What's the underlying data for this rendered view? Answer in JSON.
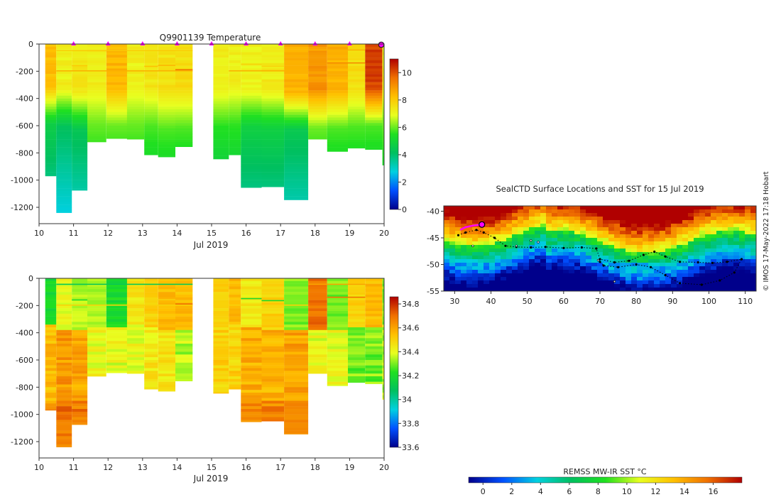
{
  "chart_data": [
    {
      "type": "heatmap",
      "variable": "temperature",
      "title": "Q9901139  Temperature",
      "xlabel": "Jul 2019",
      "ylabel": "",
      "xlim": [
        10,
        20
      ],
      "ylim": [
        -1320,
        0
      ],
      "xticks": [
        "10",
        "11",
        "12",
        "13",
        "14",
        "15",
        "16",
        "17",
        "18",
        "19",
        "20"
      ],
      "yticks": [
        "0",
        "-200",
        "-400",
        "-600",
        "-800",
        "-1000",
        "-1200"
      ],
      "colorbar": {
        "min": 0,
        "max": 11,
        "ticks": [
          "0",
          "2",
          "4",
          "6",
          "8",
          "10"
        ],
        "stops": [
          "#00008b",
          "#0050ff",
          "#00d0e0",
          "#00c060",
          "#20e020",
          "#e8ff20",
          "#ffc000",
          "#f07000",
          "#b00000"
        ]
      },
      "surface_markers_x": [
        11,
        12,
        13,
        14,
        15,
        16,
        17,
        18,
        19
      ],
      "last_marker_x": 20,
      "profiles": [
        {
          "x0": 10.18,
          "x1": 10.5,
          "depth": -970,
          "top": 8.3,
          "thermo": 430,
          "deep": 3.5
        },
        {
          "x0": 10.5,
          "x1": 10.95,
          "depth": -1240,
          "top": 7.2,
          "thermo": 450,
          "deep": 3.0
        },
        {
          "x0": 10.95,
          "x1": 11.4,
          "depth": -1075,
          "top": 7.4,
          "thermo": 470,
          "deep": 3.2
        },
        {
          "x0": 11.4,
          "x1": 11.95,
          "depth": -720,
          "top": 7.3,
          "thermo": 430,
          "deep": 4.8
        },
        {
          "x0": 11.95,
          "x1": 12.55,
          "depth": -695,
          "top": 8.4,
          "thermo": 440,
          "deep": 4.8
        },
        {
          "x0": 12.55,
          "x1": 13.05,
          "depth": -700,
          "top": 7.2,
          "thermo": 430,
          "deep": 4.8
        },
        {
          "x0": 13.05,
          "x1": 13.45,
          "depth": -815,
          "top": 7.4,
          "thermo": 440,
          "deep": 4.6
        },
        {
          "x0": 13.45,
          "x1": 13.95,
          "depth": -830,
          "top": 7.5,
          "thermo": 470,
          "deep": 4.6
        },
        {
          "x0": 13.95,
          "x1": 14.45,
          "depth": -755,
          "top": 7.6,
          "thermo": 460,
          "deep": 4.6
        },
        {
          "x0": 15.05,
          "x1": 15.5,
          "depth": -845,
          "top": 7.2,
          "thermo": 450,
          "deep": 4.3
        },
        {
          "x0": 15.5,
          "x1": 15.85,
          "depth": -815,
          "top": 7.2,
          "thermo": 430,
          "deep": 4.4
        },
        {
          "x0": 15.85,
          "x1": 16.45,
          "depth": -1055,
          "top": 7.2,
          "thermo": 450,
          "deep": 3.6
        },
        {
          "x0": 16.45,
          "x1": 17.1,
          "depth": -1050,
          "top": 7.3,
          "thermo": 460,
          "deep": 3.6
        },
        {
          "x0": 17.1,
          "x1": 17.8,
          "depth": -1145,
          "top": 8.5,
          "thermo": 470,
          "deep": 3.3
        },
        {
          "x0": 17.8,
          "x1": 18.35,
          "depth": -700,
          "top": 9.0,
          "thermo": 460,
          "deep": 4.8
        },
        {
          "x0": 18.35,
          "x1": 18.95,
          "depth": -790,
          "top": 8.5,
          "thermo": 460,
          "deep": 4.6
        },
        {
          "x0": 18.95,
          "x1": 19.45,
          "depth": -765,
          "top": 7.6,
          "thermo": 450,
          "deep": 4.6
        },
        {
          "x0": 19.45,
          "x1": 19.95,
          "depth": -775,
          "top": 10.2,
          "thermo": 440,
          "deep": 4.6
        },
        {
          "x0": 19.95,
          "x1": 20.0,
          "depth": -890,
          "top": 7.2,
          "thermo": 420,
          "deep": 4.8
        }
      ],
      "thin_profiles": [
        {
          "x0": 10.5,
          "x1": 14.45,
          "depth": -50,
          "value": 8.0
        },
        {
          "x0": 10.95,
          "x1": 11.4,
          "depth": -160,
          "value": 8.0
        },
        {
          "x0": 10.5,
          "x1": 14.45,
          "depth": -198,
          "value": 8.5
        },
        {
          "x0": 13.05,
          "x1": 13.45,
          "depth": -165,
          "value": 8.2
        },
        {
          "x0": 13.45,
          "x1": 13.95,
          "depth": -158,
          "value": 8.4
        },
        {
          "x0": 13.95,
          "x1": 14.45,
          "depth": -190,
          "value": 9.5
        },
        {
          "x0": 15.05,
          "x1": 15.5,
          "depth": -45,
          "value": 7.5
        },
        {
          "x0": 15.85,
          "x1": 16.45,
          "depth": -150,
          "value": 7.8
        },
        {
          "x0": 16.45,
          "x1": 17.1,
          "depth": -165,
          "value": 7.8
        },
        {
          "x0": 15.5,
          "x1": 17.8,
          "depth": -198,
          "value": 8.5
        },
        {
          "x0": 17.8,
          "x1": 19.45,
          "depth": -45,
          "value": 8.5
        },
        {
          "x0": 18.35,
          "x1": 19.45,
          "depth": -140,
          "value": 9.2
        }
      ]
    },
    {
      "type": "heatmap",
      "variable": "salinity",
      "title": "",
      "xlabel": "Jul 2019",
      "ylabel": "",
      "xlim": [
        10,
        20
      ],
      "ylim": [
        -1320,
        0
      ],
      "xticks": [
        "10",
        "11",
        "12",
        "13",
        "14",
        "15",
        "16",
        "17",
        "18",
        "19",
        "20"
      ],
      "yticks": [
        "0",
        "-200",
        "-400",
        "-600",
        "-800",
        "-1000",
        "-1200"
      ],
      "colorbar": {
        "min": 33.6,
        "max": 34.86,
        "ticks": [
          "33.6",
          "33.8",
          "34",
          "34.2",
          "34.4",
          "34.6",
          "34.8"
        ],
        "stops": [
          "#00008b",
          "#0050ff",
          "#00d0e0",
          "#00c060",
          "#20e020",
          "#e8ff20",
          "#ffc000",
          "#f07000",
          "#b00000"
        ]
      },
      "profiles": [
        {
          "x0": 10.18,
          "x1": 10.5,
          "depth": -970,
          "top": 34.2,
          "thermo": 420,
          "deep": 34.55
        },
        {
          "x0": 10.5,
          "x1": 10.95,
          "depth": -1240,
          "top": 34.4,
          "thermo": 460,
          "deep": 34.62
        },
        {
          "x0": 10.95,
          "x1": 11.4,
          "depth": -1075,
          "top": 34.35,
          "thermo": 470,
          "deep": 34.6
        },
        {
          "x0": 11.4,
          "x1": 11.95,
          "depth": -720,
          "top": 34.35,
          "thermo": 430,
          "deep": 34.4
        },
        {
          "x0": 11.95,
          "x1": 12.55,
          "depth": -695,
          "top": 34.2,
          "thermo": 440,
          "deep": 34.4
        },
        {
          "x0": 12.55,
          "x1": 13.05,
          "depth": -700,
          "top": 34.45,
          "thermo": 430,
          "deep": 34.4
        },
        {
          "x0": 13.05,
          "x1": 13.45,
          "depth": -815,
          "top": 34.5,
          "thermo": 440,
          "deep": 34.45
        },
        {
          "x0": 13.45,
          "x1": 13.95,
          "depth": -830,
          "top": 34.55,
          "thermo": 470,
          "deep": 34.45
        },
        {
          "x0": 13.95,
          "x1": 14.45,
          "depth": -755,
          "top": 34.55,
          "thermo": 460,
          "deep": 34.35
        },
        {
          "x0": 15.05,
          "x1": 15.5,
          "depth": -845,
          "top": 34.5,
          "thermo": 450,
          "deep": 34.5
        },
        {
          "x0": 15.5,
          "x1": 15.85,
          "depth": -815,
          "top": 34.55,
          "thermo": 430,
          "deep": 34.5
        },
        {
          "x0": 15.85,
          "x1": 16.45,
          "depth": -1055,
          "top": 34.45,
          "thermo": 450,
          "deep": 34.58
        },
        {
          "x0": 16.45,
          "x1": 17.1,
          "depth": -1050,
          "top": 34.5,
          "thermo": 460,
          "deep": 34.58
        },
        {
          "x0": 17.1,
          "x1": 17.8,
          "depth": -1145,
          "top": 34.3,
          "thermo": 470,
          "deep": 34.6
        },
        {
          "x0": 17.8,
          "x1": 18.35,
          "depth": -700,
          "top": 34.7,
          "thermo": 460,
          "deep": 34.4
        },
        {
          "x0": 18.35,
          "x1": 18.95,
          "depth": -790,
          "top": 34.3,
          "thermo": 460,
          "deep": 34.4
        },
        {
          "x0": 18.95,
          "x1": 19.45,
          "depth": -765,
          "top": 34.5,
          "thermo": 450,
          "deep": 34.3
        },
        {
          "x0": 19.45,
          "x1": 19.95,
          "depth": -775,
          "top": 34.55,
          "thermo": 440,
          "deep": 34.3
        },
        {
          "x0": 19.95,
          "x1": 20.0,
          "depth": -890,
          "top": 34.3,
          "thermo": 420,
          "deep": 34.35
        }
      ],
      "thin_profiles": [
        {
          "x0": 10.5,
          "x1": 14.45,
          "depth": -45,
          "value": 34.1
        },
        {
          "x0": 10.95,
          "x1": 11.4,
          "depth": -160,
          "value": 34.2
        },
        {
          "x0": 10.5,
          "x1": 14.45,
          "depth": -198,
          "value": 34.5
        },
        {
          "x0": 13.05,
          "x1": 13.45,
          "depth": -165,
          "value": 34.5
        },
        {
          "x0": 13.45,
          "x1": 13.95,
          "depth": -158,
          "value": 34.5
        },
        {
          "x0": 13.95,
          "x1": 14.45,
          "depth": -190,
          "value": 34.7
        },
        {
          "x0": 15.85,
          "x1": 16.45,
          "depth": -150,
          "value": 34.2
        },
        {
          "x0": 16.45,
          "x1": 17.1,
          "depth": -165,
          "value": 34.2
        },
        {
          "x0": 15.5,
          "x1": 17.8,
          "depth": -198,
          "value": 34.5
        },
        {
          "x0": 17.8,
          "x1": 19.45,
          "depth": -45,
          "value": 34.6
        },
        {
          "x0": 18.35,
          "x1": 19.45,
          "depth": -140,
          "value": 34.7
        }
      ]
    },
    {
      "type": "heatmap",
      "variable": "sst_map",
      "title": "SealCTD Surface Locations and SST for 15 Jul 2019",
      "xlabel": "",
      "ylabel": "",
      "xlim": [
        27,
        113
      ],
      "ylim": [
        -55,
        -39
      ],
      "xticks": [
        "30",
        "40",
        "50",
        "60",
        "70",
        "80",
        "90",
        "100",
        "110"
      ],
      "yticks": [
        "-40",
        "-45",
        "-50",
        "-55"
      ],
      "colorbar": {
        "label": "REMSS MW-IR SST °C",
        "min": -1,
        "max": 18,
        "ticks": [
          "0",
          "2",
          "4",
          "6",
          "8",
          "10",
          "12",
          "14",
          "16"
        ],
        "stops": [
          "#00008b",
          "#0050ff",
          "#00d0e0",
          "#00c060",
          "#20e020",
          "#e8ff20",
          "#ffc000",
          "#f07000",
          "#b00000"
        ]
      },
      "track": [
        [
          31,
          -44.5
        ],
        [
          33,
          -44
        ],
        [
          36,
          -43.5
        ],
        [
          38,
          -44
        ],
        [
          41,
          -45
        ],
        [
          44,
          -46.5
        ],
        [
          47,
          -46.7
        ],
        [
          51,
          -46.8
        ],
        [
          55,
          -46.7
        ],
        [
          60,
          -46.9
        ],
        [
          65,
          -46.8
        ],
        [
          69,
          -47
        ],
        [
          70,
          -49
        ],
        [
          74,
          -49.6
        ],
        [
          78,
          -49.3
        ],
        [
          82,
          -48.2
        ],
        [
          85,
          -47.6
        ],
        [
          88,
          -48.5
        ],
        [
          92,
          -49.5
        ],
        [
          97,
          -49.6
        ],
        [
          101,
          -49.7
        ],
        [
          105,
          -49.5
        ],
        [
          109,
          -49
        ],
        [
          107,
          -51.5
        ],
        [
          103,
          -53
        ],
        [
          98,
          -53.8
        ],
        [
          92,
          -53.5
        ],
        [
          88,
          -52
        ],
        [
          84,
          -50.5
        ],
        [
          80,
          -50
        ],
        [
          75,
          -50.5
        ],
        [
          71,
          -50.2
        ],
        [
          70,
          -49.5
        ]
      ],
      "recent_track": [
        [
          31.5,
          -43.5
        ],
        [
          33,
          -43
        ],
        [
          35,
          -42.7
        ],
        [
          37.5,
          -42.5
        ]
      ],
      "current_position": [
        37.5,
        -42.5
      ],
      "scattered_points": [
        [
          47,
          -46.5
        ],
        [
          51,
          -45.5
        ],
        [
          53,
          -45.8
        ],
        [
          35,
          -46.5
        ],
        [
          74,
          -53.2
        ],
        [
          69.5,
          -49.2
        ]
      ]
    }
  ],
  "credit": "© IMOS 17-May-2022 17:18 Hobart"
}
